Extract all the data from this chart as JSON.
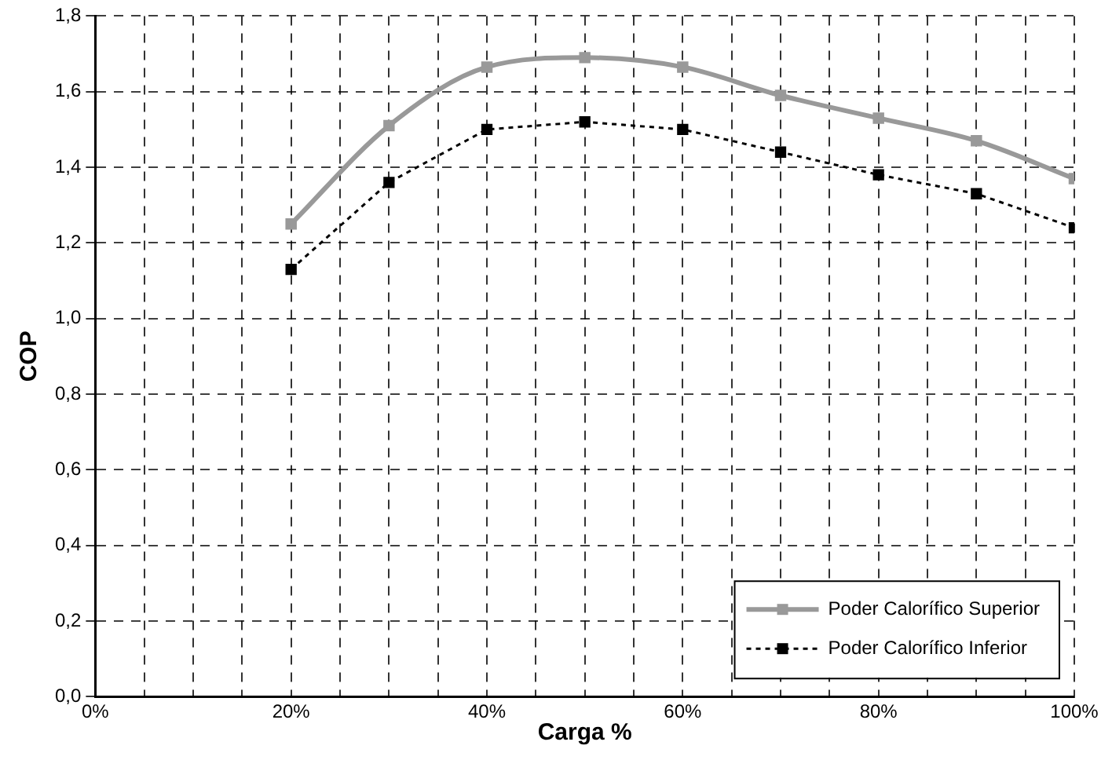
{
  "chart_data": {
    "type": "line",
    "xlabel": "Carga %",
    "ylabel": "COP",
    "x": [
      20,
      30,
      40,
      50,
      60,
      70,
      80,
      90,
      100
    ],
    "series": [
      {
        "name": "Poder Calorífico Superior",
        "color": "#999999",
        "values": [
          1.25,
          1.51,
          1.665,
          1.69,
          1.665,
          1.59,
          1.53,
          1.47,
          1.37
        ],
        "line_style": "solid"
      },
      {
        "name": "Poder Calorífico Inferior",
        "color": "#000000",
        "values": [
          1.13,
          1.36,
          1.5,
          1.52,
          1.5,
          1.44,
          1.38,
          1.33,
          1.24
        ],
        "line_style": "dotted"
      }
    ],
    "xlim": [
      0,
      100
    ],
    "xticks": [
      {
        "value": 0,
        "label": "0%"
      },
      {
        "value": 5,
        "label": null
      },
      {
        "value": 10,
        "label": null
      },
      {
        "value": 15,
        "label": null
      },
      {
        "value": 20,
        "label": "20%"
      },
      {
        "value": 25,
        "label": null
      },
      {
        "value": 30,
        "label": null
      },
      {
        "value": 35,
        "label": null
      },
      {
        "value": 40,
        "label": "40%"
      },
      {
        "value": 45,
        "label": null
      },
      {
        "value": 50,
        "label": null
      },
      {
        "value": 55,
        "label": null
      },
      {
        "value": 60,
        "label": "60%"
      },
      {
        "value": 65,
        "label": null
      },
      {
        "value": 70,
        "label": null
      },
      {
        "value": 75,
        "label": null
      },
      {
        "value": 80,
        "label": "80%"
      },
      {
        "value": 85,
        "label": null
      },
      {
        "value": 90,
        "label": null
      },
      {
        "value": 95,
        "label": null
      },
      {
        "value": 100,
        "label": "100%"
      }
    ],
    "ylim": [
      0,
      1.8
    ],
    "yticks": [
      {
        "value": 0,
        "label": "0,0"
      },
      {
        "value": 0.2,
        "label": "0,2"
      },
      {
        "value": 0.4,
        "label": "0,4"
      },
      {
        "value": 0.6,
        "label": "0,6"
      },
      {
        "value": 0.8,
        "label": "0,8"
      },
      {
        "value": 1.0,
        "label": "1,0"
      },
      {
        "value": 1.2,
        "label": "1,2"
      },
      {
        "value": 1.4,
        "label": "1,4"
      },
      {
        "value": 1.6,
        "label": "1,6"
      },
      {
        "value": 1.8,
        "label": "1,8"
      }
    ],
    "grid": true,
    "legend": "bottom right",
    "marker": "square"
  }
}
